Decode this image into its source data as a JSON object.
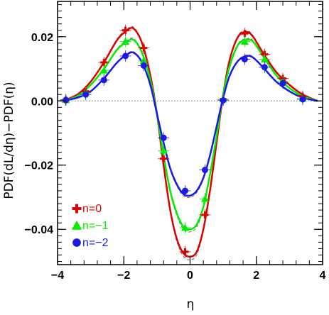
{
  "chart_data": {
    "type": "line",
    "title": "",
    "xlabel": "η",
    "ylabel": "PDF(dL/dη)−PDF(η)",
    "xlim": [
      -4,
      4
    ],
    "ylim": [
      -0.051,
      0.031
    ],
    "x_ticks": [
      -4,
      -2,
      0,
      2,
      4
    ],
    "x_tick_labels": [
      "−4",
      "−2",
      "0",
      "2",
      "4"
    ],
    "y_ticks": [
      -0.04,
      -0.02,
      0.0,
      0.02
    ],
    "y_tick_labels": [
      "−0.04",
      "−0.02",
      "0.00",
      "0.02"
    ],
    "reference_line": 0,
    "legend_position": "bottom-left",
    "series": [
      {
        "name": "n=0",
        "color": "#dd0000",
        "marker": "cross",
        "curve": [
          [
            -3.85,
            0.0
          ],
          [
            -3.4,
            0.002
          ],
          [
            -3.0,
            0.006
          ],
          [
            -2.6,
            0.012
          ],
          [
            -2.2,
            0.019
          ],
          [
            -1.9,
            0.022
          ],
          [
            -1.7,
            0.0225
          ],
          [
            -1.45,
            0.018
          ],
          [
            -1.2,
            0.008
          ],
          [
            -1.0,
            -0.004
          ],
          [
            -0.8,
            -0.02
          ],
          [
            -0.6,
            -0.034
          ],
          [
            -0.4,
            -0.043
          ],
          [
            -0.2,
            -0.0475
          ],
          [
            0.0,
            -0.0485
          ],
          [
            0.2,
            -0.047
          ],
          [
            0.4,
            -0.04
          ],
          [
            0.6,
            -0.028
          ],
          [
            0.8,
            -0.013
          ],
          [
            1.0,
            0.002
          ],
          [
            1.2,
            0.013
          ],
          [
            1.45,
            0.02
          ],
          [
            1.7,
            0.0215
          ],
          [
            1.9,
            0.02
          ],
          [
            2.2,
            0.015
          ],
          [
            2.6,
            0.009
          ],
          [
            3.0,
            0.005
          ],
          [
            3.4,
            0.002
          ],
          [
            3.85,
            0.0
          ]
        ],
        "points": [
          {
            "x": -3.75,
            "y": 0.0003
          },
          {
            "x": -3.15,
            "y": 0.003
          },
          {
            "x": -2.6,
            "y": 0.012
          },
          {
            "x": -1.95,
            "y": 0.022
          },
          {
            "x": -1.4,
            "y": 0.0165
          },
          {
            "x": -0.8,
            "y": -0.018
          },
          {
            "x": -0.15,
            "y": -0.047
          },
          {
            "x": 0.45,
            "y": -0.0355
          },
          {
            "x": 1.0,
            "y": 0.0005
          },
          {
            "x": 1.65,
            "y": 0.021
          },
          {
            "x": 2.25,
            "y": 0.0145
          },
          {
            "x": 2.8,
            "y": 0.007
          },
          {
            "x": 3.4,
            "y": 0.0015
          }
        ]
      },
      {
        "name": "n=−1",
        "color": "#00ee00",
        "marker": "triangle",
        "curve": [
          [
            -3.85,
            0.0
          ],
          [
            -3.4,
            0.0015
          ],
          [
            -3.0,
            0.005
          ],
          [
            -2.6,
            0.01
          ],
          [
            -2.2,
            0.016
          ],
          [
            -1.9,
            0.0185
          ],
          [
            -1.7,
            0.019
          ],
          [
            -1.45,
            0.015
          ],
          [
            -1.2,
            0.0065
          ],
          [
            -1.0,
            -0.004
          ],
          [
            -0.8,
            -0.017
          ],
          [
            -0.6,
            -0.028
          ],
          [
            -0.4,
            -0.035
          ],
          [
            -0.2,
            -0.0392
          ],
          [
            0.0,
            -0.04
          ],
          [
            0.2,
            -0.0385
          ],
          [
            0.4,
            -0.033
          ],
          [
            0.6,
            -0.023
          ],
          [
            0.8,
            -0.011
          ],
          [
            1.0,
            0.002
          ],
          [
            1.2,
            0.011
          ],
          [
            1.45,
            0.0175
          ],
          [
            1.7,
            0.019
          ],
          [
            1.9,
            0.0185
          ],
          [
            2.2,
            0.014
          ],
          [
            2.6,
            0.008
          ],
          [
            3.0,
            0.004
          ],
          [
            3.4,
            0.0015
          ],
          [
            3.85,
            0.0
          ]
        ],
        "points": [
          {
            "x": -3.75,
            "y": 0.0003
          },
          {
            "x": -3.15,
            "y": 0.0025
          },
          {
            "x": -2.6,
            "y": 0.0095
          },
          {
            "x": -1.95,
            "y": 0.0185
          },
          {
            "x": -1.4,
            "y": 0.0125
          },
          {
            "x": -0.8,
            "y": -0.0155
          },
          {
            "x": -0.15,
            "y": -0.0395
          },
          {
            "x": 0.45,
            "y": -0.0305
          },
          {
            "x": 1.0,
            "y": 0.0005
          },
          {
            "x": 1.65,
            "y": 0.0185
          },
          {
            "x": 2.25,
            "y": 0.013
          },
          {
            "x": 2.8,
            "y": 0.006
          },
          {
            "x": 3.4,
            "y": 0.0008
          }
        ]
      },
      {
        "name": "n=−2",
        "color": "#1a1ae6",
        "marker": "circle",
        "curve": [
          [
            -3.85,
            0.0
          ],
          [
            -3.4,
            0.001
          ],
          [
            -3.0,
            0.003
          ],
          [
            -2.6,
            0.007
          ],
          [
            -2.2,
            0.012
          ],
          [
            -1.9,
            0.0145
          ],
          [
            -1.7,
            0.015
          ],
          [
            -1.45,
            0.012
          ],
          [
            -1.2,
            0.005
          ],
          [
            -1.0,
            -0.004
          ],
          [
            -0.8,
            -0.013
          ],
          [
            -0.6,
            -0.021
          ],
          [
            -0.4,
            -0.026
          ],
          [
            -0.2,
            -0.029
          ],
          [
            0.0,
            -0.0295
          ],
          [
            0.2,
            -0.028
          ],
          [
            0.4,
            -0.024
          ],
          [
            0.6,
            -0.017
          ],
          [
            0.8,
            -0.008
          ],
          [
            1.0,
            0.001
          ],
          [
            1.2,
            0.008
          ],
          [
            1.45,
            0.0125
          ],
          [
            1.7,
            0.014
          ],
          [
            1.9,
            0.0135
          ],
          [
            2.2,
            0.0105
          ],
          [
            2.6,
            0.006
          ],
          [
            3.0,
            0.003
          ],
          [
            3.4,
            0.001
          ],
          [
            3.85,
            0.0
          ]
        ],
        "points": [
          {
            "x": -3.75,
            "y": 0.0003
          },
          {
            "x": -3.15,
            "y": 0.002
          },
          {
            "x": -2.6,
            "y": 0.0065
          },
          {
            "x": -1.95,
            "y": 0.014
          },
          {
            "x": -1.4,
            "y": 0.011
          },
          {
            "x": -0.8,
            "y": -0.0115
          },
          {
            "x": -0.15,
            "y": -0.028
          },
          {
            "x": 0.45,
            "y": -0.0215
          },
          {
            "x": 1.0,
            "y": 0.0002
          },
          {
            "x": 1.65,
            "y": 0.013
          },
          {
            "x": 2.25,
            "y": 0.0105
          },
          {
            "x": 2.8,
            "y": 0.0055
          },
          {
            "x": 3.4,
            "y": 0.0005
          }
        ]
      }
    ]
  }
}
